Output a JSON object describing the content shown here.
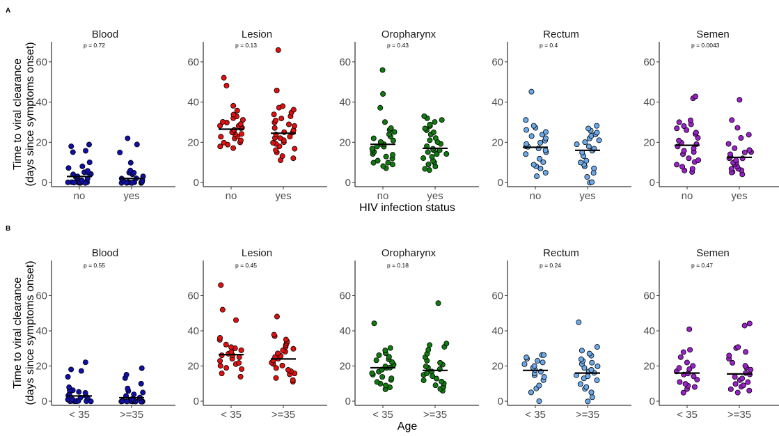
{
  "figure": {
    "y_title_line1": "Time to viral clearance",
    "y_title_line2": "(days since symptoms onset)"
  },
  "chart_data": [
    {
      "tag": "A",
      "type": "scatter",
      "xlabel": "HIV infection status",
      "categories": [
        "no",
        "yes"
      ],
      "ylim": [
        0,
        70
      ],
      "yticks": [
        0,
        20,
        40,
        60
      ],
      "panels": [
        {
          "title": "Blood",
          "p_label": "p = 0.72",
          "color": "#1010a8",
          "medians": [
            3,
            2
          ],
          "points": [
            [
              0,
              0,
              0,
              0,
              0,
              0,
              0,
              0,
              0,
              0,
              0,
              1,
              1,
              2,
              2,
              3,
              3,
              4,
              4,
              5,
              5,
              6,
              7,
              8,
              10,
              15,
              16,
              18,
              19
            ],
            [
              0,
              0,
              0,
              0,
              0,
              0,
              0,
              0,
              0,
              0,
              0,
              0,
              0,
              1,
              1,
              2,
              2,
              3,
              4,
              5,
              5,
              6,
              10,
              15,
              19,
              22
            ]
          ]
        },
        {
          "title": "Lesion",
          "p_label": "p = 0.13",
          "color": "#e01010",
          "medians": [
            26.5,
            24.5
          ],
          "points": [
            [
              17,
              18,
              19,
              20,
              20,
              21,
              22,
              23,
              23,
              24,
              24,
              25,
              25,
              26,
              26,
              27,
              27,
              28,
              28,
              29,
              30,
              30,
              31,
              32,
              33,
              34,
              36,
              38,
              48,
              52
            ],
            [
              11,
              12,
              13,
              15,
              16,
              17,
              18,
              19,
              20,
              20,
              21,
              22,
              22,
              23,
              24,
              25,
              25,
              26,
              27,
              28,
              29,
              30,
              31,
              32,
              33,
              34,
              35,
              36,
              37,
              38,
              46,
              66
            ]
          ]
        },
        {
          "title": "Oropharynx",
          "p_label": "p = 0.43",
          "color": "#107a10",
          "medians": [
            19,
            17
          ],
          "points": [
            [
              7,
              8,
              9,
              10,
              10,
              11,
              12,
              13,
              14,
              14,
              15,
              16,
              17,
              18,
              18,
              19,
              19,
              20,
              21,
              22,
              23,
              24,
              25,
              26,
              27,
              30,
              37,
              44,
              56
            ],
            [
              6,
              7,
              8,
              9,
              10,
              11,
              12,
              13,
              14,
              14,
              15,
              16,
              16,
              17,
              18,
              19,
              20,
              21,
              22,
              24,
              25,
              26,
              27,
              28,
              29,
              30,
              31,
              32,
              33
            ]
          ]
        },
        {
          "title": "Rectum",
          "p_label": "p = 0.4",
          "color": "#6aa8e8",
          "medians": [
            17.5,
            16
          ],
          "points": [
            [
              3,
              5,
              7,
              8,
              9,
              10,
              12,
              14,
              15,
              16,
              17,
              18,
              18,
              19,
              20,
              21,
              22,
              23,
              24,
              25,
              26,
              27,
              28,
              31,
              45
            ],
            [
              0,
              0,
              3,
              5,
              7,
              8,
              9,
              10,
              11,
              13,
              15,
              16,
              17,
              18,
              19,
              20,
              21,
              22,
              23,
              24,
              25,
              26,
              27,
              28
            ]
          ]
        },
        {
          "title": "Semen",
          "p_label": "p = 0.0043",
          "color": "#9a20c8",
          "medians": [
            18.5,
            12.5
          ],
          "points": [
            [
              5,
              6,
              7,
              8,
              9,
              10,
              11,
              12,
              14,
              15,
              16,
              17,
              18,
              19,
              20,
              21,
              22,
              24,
              25,
              26,
              27,
              28,
              29,
              30,
              31,
              42,
              43
            ],
            [
              4,
              5,
              5,
              6,
              7,
              7,
              8,
              9,
              10,
              10,
              11,
              12,
              12,
              13,
              13,
              14,
              15,
              15,
              16,
              17,
              19,
              22,
              24,
              27,
              31,
              41
            ]
          ]
        }
      ]
    },
    {
      "tag": "B",
      "type": "scatter",
      "xlabel": "Age",
      "categories": [
        "< 35",
        ">=35"
      ],
      "ylim": [
        0,
        80
      ],
      "yticks": [
        0,
        20,
        40,
        60
      ],
      "panels": [
        {
          "title": "Blood",
          "p_label": "p = 0.55",
          "color": "#1010a8",
          "medians": [
            3,
            2
          ],
          "points": [
            [
              0,
              0,
              0,
              0,
              0,
              0,
              0,
              0,
              0,
              0,
              1,
              1,
              2,
              2,
              3,
              3,
              4,
              5,
              5,
              6,
              6,
              8,
              14,
              17,
              18,
              22
            ],
            [
              0,
              0,
              0,
              0,
              0,
              0,
              0,
              0,
              0,
              0,
              0,
              0,
              1,
              1,
              2,
              2,
              3,
              4,
              5,
              6,
              7,
              10,
              13,
              15,
              19
            ]
          ]
        },
        {
          "title": "Lesion",
          "p_label": "p = 0.45",
          "color": "#e01010",
          "medians": [
            26.5,
            24
          ],
          "points": [
            [
              14,
              16,
              18,
              19,
              20,
              21,
              22,
              23,
              24,
              25,
              26,
              26,
              27,
              28,
              29,
              30,
              31,
              32,
              35,
              36,
              46,
              52,
              66
            ],
            [
              11,
              12,
              13,
              15,
              16,
              17,
              18,
              19,
              20,
              21,
              22,
              23,
              24,
              25,
              26,
              27,
              28,
              29,
              30,
              31,
              32,
              33,
              34,
              35,
              37,
              38,
              48
            ]
          ]
        },
        {
          "title": "Oropharynx",
          "p_label": "p = 0.18",
          "color": "#107a10",
          "medians": [
            19,
            17.5
          ],
          "points": [
            [
              7,
              8,
              9,
              10,
              11,
              12,
              13,
              14,
              15,
              16,
              17,
              18,
              19,
              19,
              20,
              21,
              22,
              23,
              24,
              25,
              26,
              27,
              29,
              30,
              44
            ],
            [
              6,
              7,
              8,
              9,
              10,
              11,
              12,
              13,
              14,
              15,
              16,
              17,
              18,
              19,
              20,
              21,
              22,
              23,
              25,
              27,
              29,
              31,
              32,
              33,
              56
            ]
          ]
        },
        {
          "title": "Rectum",
          "p_label": "p = 0.24",
          "color": "#6aa8e8",
          "medians": [
            17.5,
            16
          ],
          "points": [
            [
              0,
              5,
              7,
              9,
              12,
              14,
              15,
              16,
              17,
              18,
              19,
              20,
              21,
              22,
              23,
              24,
              25,
              26,
              26
            ],
            [
              0,
              2,
              5,
              7,
              8,
              10,
              12,
              13,
              14,
              15,
              16,
              17,
              18,
              19,
              20,
              21,
              22,
              23,
              24,
              26,
              27,
              29,
              31,
              45
            ]
          ]
        },
        {
          "title": "Semen",
          "p_label": "p = 0.47",
          "color": "#9a20c8",
          "medians": [
            16,
            15.5
          ],
          "points": [
            [
              5,
              7,
              8,
              9,
              10,
              11,
              12,
              14,
              15,
              16,
              17,
              18,
              19,
              20,
              22,
              25,
              28,
              29,
              41
            ],
            [
              5,
              6,
              7,
              8,
              9,
              10,
              11,
              12,
              13,
              14,
              15,
              16,
              18,
              19,
              20,
              22,
              24,
              26,
              28,
              30,
              31,
              43,
              44
            ]
          ]
        }
      ]
    }
  ]
}
